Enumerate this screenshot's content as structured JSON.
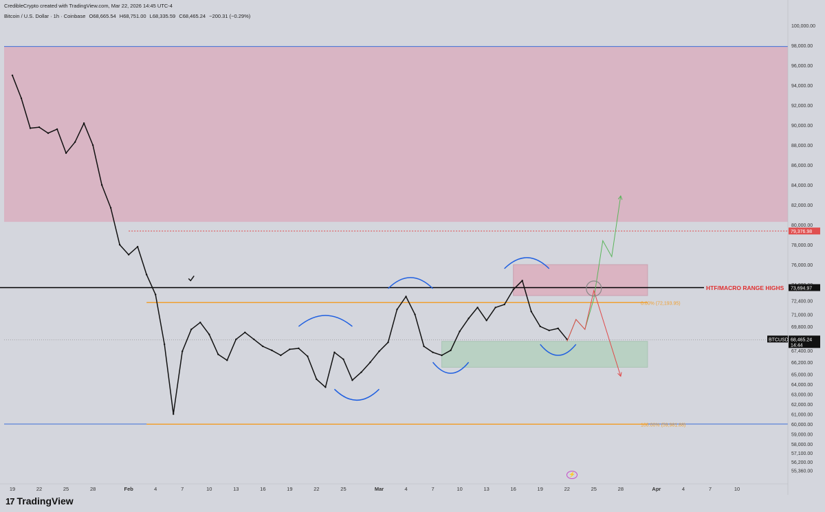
{
  "header": {
    "attribution": "CredibleCrypto created with TradingView.com, Mar 22, 2026 14:45 UTC-4",
    "symbol": "Bitcoin / U.S. Dollar · 1h · Coinbase",
    "open": "O68,665.54",
    "high": "H68,751.00",
    "low": "L68,335.59",
    "close": "C68,465.24",
    "change": "−200.31 (−0.29%)"
  },
  "brand": {
    "logo_text": "TradingView",
    "logo_icon": "tradingview-logo-icon"
  },
  "colors": {
    "background": "#d4d6dd",
    "supply_zone": "#d9b5c4",
    "demand_zone": "#b9d1c3",
    "range_high_line": "#000000",
    "fib_line": "#f0a030",
    "blue_line": "#3d6fd8",
    "arc": "#1f5fe0",
    "up_arrow": "#5bb55b",
    "down_arrow": "#e04848",
    "label_red": "#e03030"
  },
  "chart_data": {
    "type": "line",
    "title": "Bitcoin / U.S. Dollar · 1h · Coinbase",
    "xlabel": "",
    "ylabel": "",
    "ylim": [
      54000,
      101600
    ],
    "grid": false,
    "x_ticks": [
      "19",
      "22",
      "25",
      "28",
      "Feb",
      "4",
      "7",
      "10",
      "13",
      "16",
      "19",
      "22",
      "25",
      "Mar",
      "4",
      "7",
      "10",
      "13",
      "16",
      "19",
      "22",
      "25",
      "28",
      "Apr",
      "4",
      "7",
      "10"
    ],
    "y_ticks": [
      "100,000.00",
      "98,000.00",
      "96,000.00",
      "94,000.00",
      "92,000.00",
      "90,000.00",
      "88,000.00",
      "86,000.00",
      "84,000.00",
      "82,000.00",
      "80,000.00",
      "78,000.00",
      "76,000.00",
      "74,000.00",
      "72,400.00",
      "71,000.00",
      "69,800.00",
      "67,400.00",
      "66,200.00",
      "65,000.00",
      "64,000.00",
      "63,000.00",
      "62,000.00",
      "61,000.00",
      "60,000.00",
      "59,000.00",
      "58,000.00",
      "57,100.00",
      "56,200.00",
      "55,360.00"
    ],
    "series": [
      {
        "date": [
          "Jan 19",
          "Jan 20",
          "Jan 21",
          "Jan 22",
          "Jan 23",
          "Jan 24",
          "Jan 25",
          "Jan 26",
          "Jan 27",
          "Jan 28",
          "Jan 29",
          "Jan 30",
          "Jan 31",
          "Feb 1",
          "Feb 2",
          "Feb 3",
          "Feb 4",
          "Feb 5",
          "Feb 6",
          "Feb 7",
          "Feb 8",
          "Feb 9",
          "Feb 10",
          "Feb 11",
          "Feb 12",
          "Feb 13",
          "Feb 14",
          "Feb 15",
          "Feb 16",
          "Feb 17",
          "Feb 18",
          "Feb 19",
          "Feb 20",
          "Feb 21",
          "Feb 22",
          "Feb 23",
          "Feb 24",
          "Feb 25",
          "Feb 26",
          "Feb 27",
          "Feb 28",
          "Mar 1",
          "Mar 2",
          "Mar 3",
          "Mar 4",
          "Mar 5",
          "Mar 6",
          "Mar 7",
          "Mar 8",
          "Mar 9",
          "Mar 10",
          "Mar 11",
          "Mar 12",
          "Mar 13",
          "Mar 14",
          "Mar 15",
          "Mar 16",
          "Mar 17",
          "Mar 18",
          "Mar 19",
          "Mar 20",
          "Mar 21",
          "Mar 22"
        ],
        "close": [
          95000,
          92700,
          89700,
          89800,
          89200,
          89600,
          87200,
          88300,
          90200,
          88000,
          84000,
          81700,
          78000,
          77000,
          77800,
          75000,
          73000,
          68000,
          61000,
          67300,
          69500,
          70200,
          69000,
          67000,
          66400,
          68500,
          69200,
          68500,
          67800,
          67400,
          66900,
          67500,
          67600,
          66800,
          64500,
          63700,
          67200,
          66500,
          64400,
          65200,
          66200,
          67300,
          68200,
          71500,
          72800,
          71000,
          67800,
          67200,
          66900,
          67400,
          69300,
          70600,
          71700,
          70400,
          71700,
          72000,
          73500,
          74400,
          71300,
          69800,
          69400,
          69600,
          68500
        ]
      }
    ],
    "horizontal_levels": [
      {
        "name": "supply-zone-top",
        "value": 97900
      },
      {
        "name": "supply-zone-bottom",
        "value": 80300
      },
      {
        "name": "red-dotted-level",
        "value": 79376.98
      },
      {
        "name": "htf-range-high",
        "value": 73694.97
      },
      {
        "name": "fib-0",
        "value": 72193.95
      },
      {
        "name": "blue-low-line",
        "value": 60000
      },
      {
        "name": "fib-100",
        "value": 59981.88
      }
    ],
    "annotations": {
      "range_high_label": "HTF/MACRO RANGE HIGHS",
      "fib_0_label": "0.00% (72,193.95)",
      "fib_100_label": "100.00% (59,981.88)",
      "red_level_price": "79,376.98",
      "range_high_price": "73,694.97",
      "last_symbol": "BTCUSD",
      "last_price": "68,465.24",
      "countdown": "14:44",
      "supply_zone": {
        "from_price": 80300,
        "to_price": 97900
      },
      "range_box": {
        "from_date": "Mar 16",
        "to_date": "Mar 31",
        "from_price": 72900,
        "to_price": 76000
      },
      "demand_zone": {
        "from_date": "Mar 8",
        "to_date": "Mar 31",
        "from_price": 65700,
        "to_price": 68300
      },
      "bullish_path": [
        [
          "Mar 22",
          68300
        ],
        [
          "Mar 23",
          70500
        ],
        [
          "Mar 24",
          69500
        ],
        [
          "Mar 25",
          72600
        ],
        [
          "Mar 26",
          78400
        ],
        [
          "Mar 27",
          76800
        ],
        [
          "Mar 28",
          82900
        ]
      ],
      "bearish_path": [
        [
          "Mar 22",
          68300
        ],
        [
          "Mar 23",
          70500
        ],
        [
          "Mar 24",
          69500
        ],
        [
          "Mar 25",
          73400
        ],
        [
          "Mar 28",
          64800
        ]
      ]
    }
  }
}
